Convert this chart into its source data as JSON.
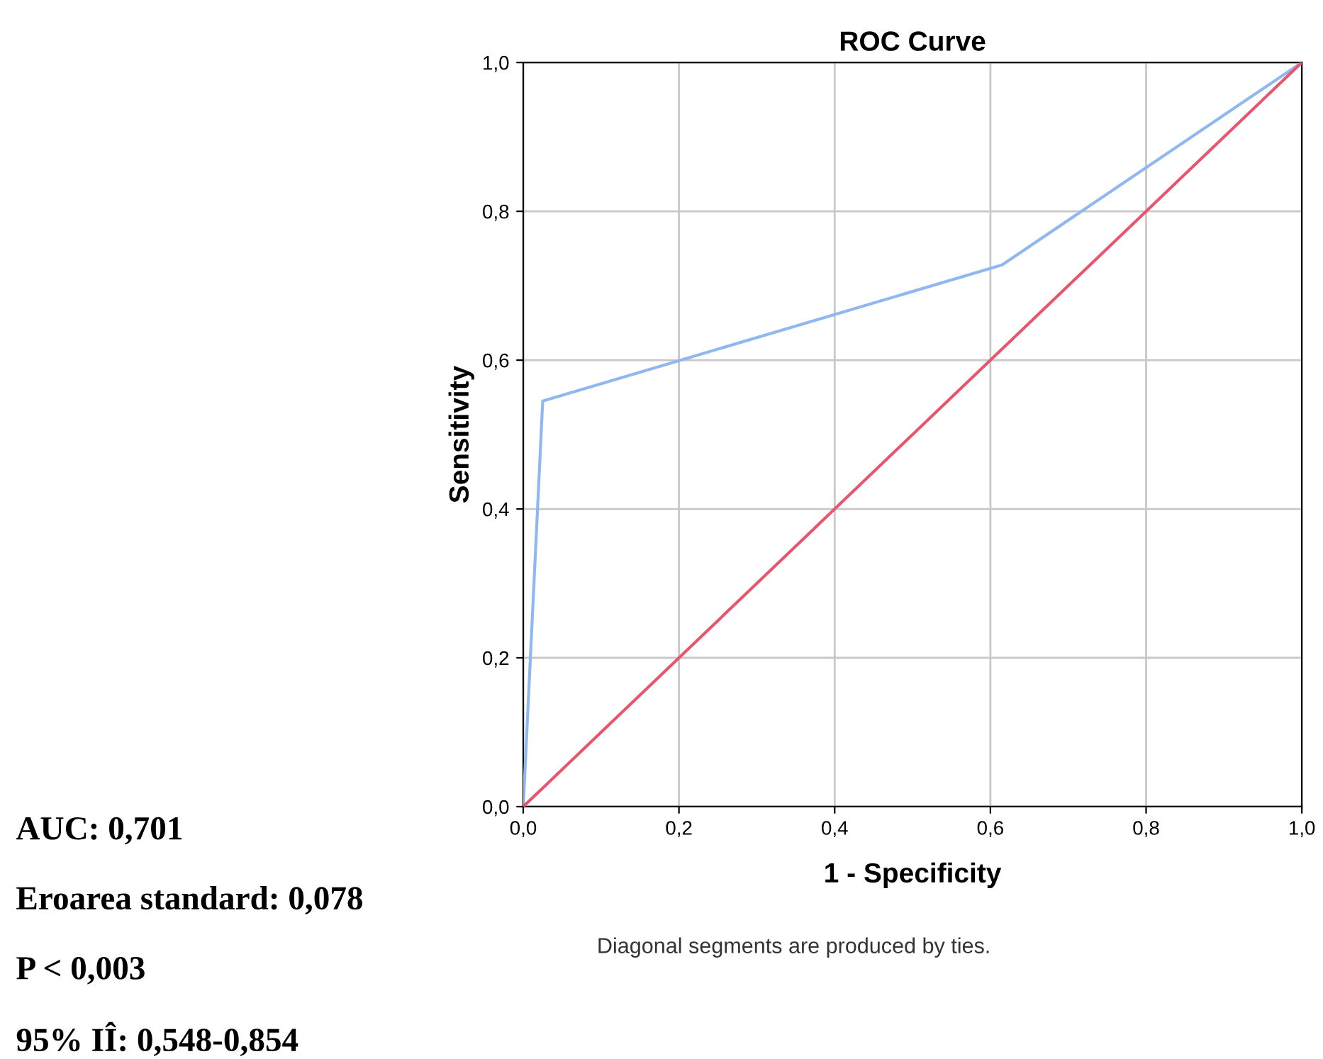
{
  "chart_data": {
    "type": "line",
    "title": "ROC Curve",
    "xlabel": "1 - Specificity",
    "ylabel": "Sensitivity",
    "series": [
      {
        "color": "#8fb8f0",
        "x": [
          0,
          0.025,
          0.615,
          1
        ],
        "values": [
          0,
          0.545,
          0.728,
          1
        ]
      },
      {
        "color": "#e8556e",
        "x": [
          0,
          1
        ],
        "values": [
          0,
          1
        ]
      }
    ],
    "xlim": [
      0,
      1
    ],
    "ylim": [
      0,
      1
    ],
    "xticks": [
      {
        "value": 0,
        "label": "0,0"
      },
      {
        "value": 0.2,
        "label": "0,2"
      },
      {
        "value": 0.4,
        "label": "0,4"
      },
      {
        "value": 0.6,
        "label": "0,6"
      },
      {
        "value": 0.8,
        "label": "0,8"
      },
      {
        "value": 1,
        "label": "1,0"
      }
    ],
    "yticks": [
      {
        "value": 0,
        "label": "0,0"
      },
      {
        "value": 0.2,
        "label": "0,2"
      },
      {
        "value": 0.4,
        "label": "0,4"
      },
      {
        "value": 0.6,
        "label": "0,6"
      },
      {
        "value": 0.8,
        "label": "0,8"
      },
      {
        "value": 1,
        "label": "1,0"
      }
    ],
    "grid": true,
    "annotations": [
      "Diagonal segments are produced by ties.",
      "AUC: 0,701",
      "Eroarea standard: 0,078",
      "P < 0,003",
      "95% IÎ: 0,548-0,854"
    ]
  }
}
